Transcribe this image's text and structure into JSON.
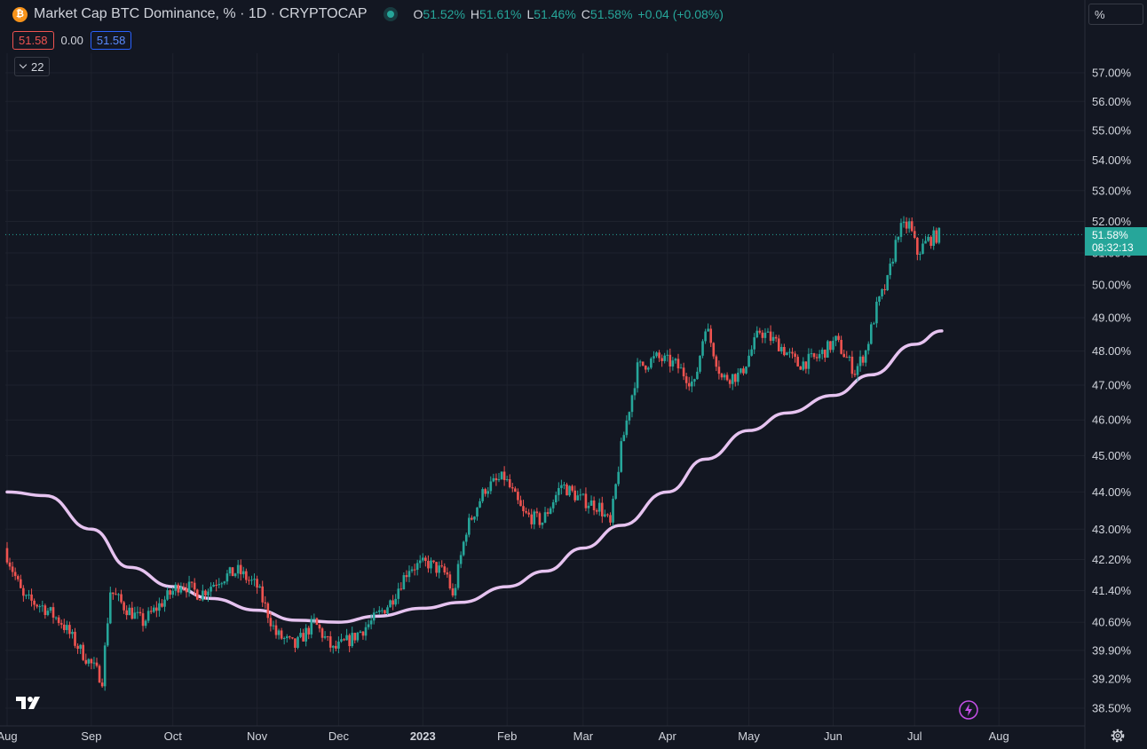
{
  "header": {
    "coin_icon": "bitcoin-icon",
    "title": "Market Cap BTC Dominance, % · 1D · CRYPTOCAP",
    "ohlc": {
      "o_label": "O",
      "o_value": "51.52%",
      "h_label": "H",
      "h_value": "51.61%",
      "l_label": "L",
      "l_value": "51.46%",
      "c_label": "C",
      "c_value": "51.58%",
      "change": "+0.04 (+0.08%)"
    },
    "values": {
      "first": "51.58",
      "middle": "0.00",
      "last": "51.58"
    },
    "collapse_count": "22"
  },
  "scale_mode": "%",
  "price_tag": {
    "price": "51.58%",
    "countdown": "08:32:13"
  },
  "colors": {
    "background": "#131722",
    "up": "#26a69a",
    "down": "#ef5350",
    "moving_average": "#e6c3f0",
    "grid": "#1e222d",
    "bolt": "#c64fe8"
  },
  "icons": {
    "logo": "tradingview-logo",
    "alert": "lightning-icon",
    "settings": "gear-icon"
  },
  "chart_data": {
    "type": "candlestick",
    "title": "Market Cap BTC Dominance, % · 1D · CRYPTOCAP",
    "y_ticks": [
      "57.00%",
      "56.00%",
      "55.00%",
      "54.00%",
      "53.00%",
      "52.00%",
      "51.00%",
      "50.00%",
      "49.00%",
      "48.00%",
      "47.00%",
      "46.00%",
      "45.00%",
      "44.00%",
      "43.00%",
      "42.20%",
      "41.40%",
      "40.60%",
      "39.90%",
      "39.20%",
      "38.50%"
    ],
    "y_scale": "log",
    "x_ticks": [
      "Aug",
      "Sep",
      "Oct",
      "Nov",
      "Dec",
      "2023",
      "Feb",
      "Mar",
      "Apr",
      "May",
      "Jun",
      "Jul",
      "Aug"
    ],
    "x_range": [
      "2022-08-01",
      "2023-08-15"
    ],
    "series": [
      {
        "type": "candlestick",
        "points": [
          [
            "2022-08-01",
            42.5
          ],
          [
            "2022-08-08",
            41.2
          ],
          [
            "2022-08-15",
            41.0
          ],
          [
            "2022-08-22",
            40.6
          ],
          [
            "2022-08-29",
            39.9
          ],
          [
            "2022-09-06",
            39.2
          ],
          [
            "2022-09-09",
            41.4
          ],
          [
            "2022-09-14",
            41.0
          ],
          [
            "2022-09-21",
            40.6
          ],
          [
            "2022-09-28",
            41.1
          ],
          [
            "2022-10-05",
            41.6
          ],
          [
            "2022-10-12",
            41.3
          ],
          [
            "2022-10-19",
            41.7
          ],
          [
            "2022-10-26",
            41.9
          ],
          [
            "2022-11-02",
            41.5
          ],
          [
            "2022-11-09",
            40.3
          ],
          [
            "2022-11-16",
            40.0
          ],
          [
            "2022-11-23",
            40.6
          ],
          [
            "2022-11-30",
            39.9
          ],
          [
            "2022-12-07",
            40.2
          ],
          [
            "2022-12-14",
            40.6
          ],
          [
            "2022-12-21",
            41.1
          ],
          [
            "2022-12-28",
            42.0
          ],
          [
            "2023-01-04",
            42.1
          ],
          [
            "2023-01-11",
            41.8
          ],
          [
            "2023-01-13",
            41.2
          ],
          [
            "2023-01-18",
            43.0
          ],
          [
            "2023-01-25",
            44.1
          ],
          [
            "2023-02-01",
            44.4
          ],
          [
            "2023-02-08",
            43.4
          ],
          [
            "2023-02-15",
            43.2
          ],
          [
            "2023-02-22",
            44.2
          ],
          [
            "2023-03-01",
            43.8
          ],
          [
            "2023-03-08",
            43.6
          ],
          [
            "2023-03-12",
            43.1
          ],
          [
            "2023-03-16",
            45.2
          ],
          [
            "2023-03-22",
            47.5
          ],
          [
            "2023-03-29",
            47.8
          ],
          [
            "2023-04-05",
            47.6
          ],
          [
            "2023-04-12",
            47.0
          ],
          [
            "2023-04-16",
            48.8
          ],
          [
            "2023-04-22",
            47.2
          ],
          [
            "2023-04-29",
            47.3
          ],
          [
            "2023-05-06",
            48.6
          ],
          [
            "2023-05-13",
            48.2
          ],
          [
            "2023-05-20",
            47.6
          ],
          [
            "2023-05-27",
            47.8
          ],
          [
            "2023-06-03",
            48.3
          ],
          [
            "2023-06-10",
            47.4
          ],
          [
            "2023-06-14",
            48.0
          ],
          [
            "2023-06-18",
            49.3
          ],
          [
            "2023-06-22",
            50.1
          ],
          [
            "2023-06-26",
            51.7
          ],
          [
            "2023-06-30",
            51.9
          ],
          [
            "2023-07-03",
            51.0
          ],
          [
            "2023-07-07",
            51.4
          ],
          [
            "2023-07-11",
            51.58
          ]
        ]
      },
      {
        "type": "line",
        "points": [
          [
            "2022-08-01",
            44.0
          ],
          [
            "2022-08-15",
            43.9
          ],
          [
            "2022-09-01",
            43.0
          ],
          [
            "2022-09-15",
            42.0
          ],
          [
            "2022-10-01",
            41.5
          ],
          [
            "2022-10-15",
            41.2
          ],
          [
            "2022-11-01",
            40.9
          ],
          [
            "2022-11-15",
            40.65
          ],
          [
            "2022-12-01",
            40.6
          ],
          [
            "2022-12-15",
            40.75
          ],
          [
            "2023-01-01",
            40.95
          ],
          [
            "2023-01-15",
            41.1
          ],
          [
            "2023-02-01",
            41.5
          ],
          [
            "2023-02-15",
            41.9
          ],
          [
            "2023-03-01",
            42.5
          ],
          [
            "2023-03-15",
            43.1
          ],
          [
            "2023-04-01",
            44.0
          ],
          [
            "2023-04-15",
            44.9
          ],
          [
            "2023-05-01",
            45.7
          ],
          [
            "2023-05-15",
            46.2
          ],
          [
            "2023-06-01",
            46.7
          ],
          [
            "2023-06-15",
            47.3
          ],
          [
            "2023-07-01",
            48.2
          ],
          [
            "2023-07-11",
            48.6
          ]
        ]
      }
    ],
    "last_price": 51.58
  }
}
